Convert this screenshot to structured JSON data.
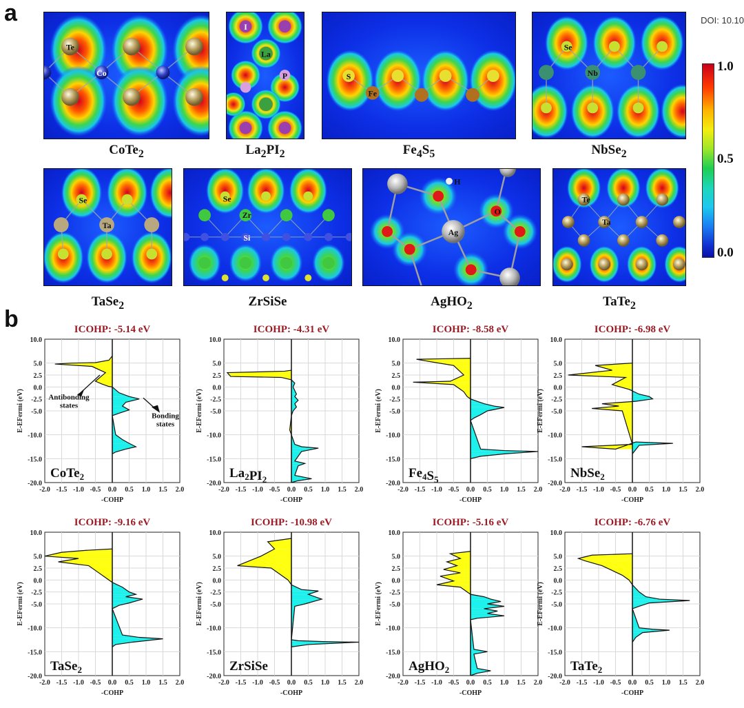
{
  "panel_a": {
    "letter": "a",
    "doi": "DOI: 10.10",
    "colorbar": {
      "ticks": [
        "1.0",
        "0.5",
        "0.0"
      ]
    },
    "maps": [
      {
        "id": "CoTe2",
        "label": "CoTe",
        "sub": "2",
        "atoms": [
          "Te",
          "Co"
        ]
      },
      {
        "id": "La2PI2",
        "label": "La",
        "sub": "2",
        "label2": "PI",
        "sub2": "2",
        "atoms": [
          "I",
          "La",
          "P"
        ]
      },
      {
        "id": "Fe4S5",
        "label": "Fe",
        "sub": "4",
        "label2": "S",
        "sub2": "5",
        "atoms": [
          "S",
          "Fe"
        ]
      },
      {
        "id": "NbSe2",
        "label": "NbSe",
        "sub": "2",
        "atoms": [
          "Se",
          "Nb"
        ]
      },
      {
        "id": "TaSe2",
        "label": "TaSe",
        "sub": "2",
        "atoms": [
          "Se",
          "Ta"
        ]
      },
      {
        "id": "ZrSiSe",
        "label": "ZrSiSe",
        "sub": "",
        "atoms": [
          "Se",
          "Zr",
          "Si"
        ]
      },
      {
        "id": "AgHO2",
        "label": "AgHO",
        "sub": "2",
        "atoms": [
          "H",
          "Ag",
          "O"
        ]
      },
      {
        "id": "TaTe2",
        "label": "TaTe",
        "sub": "2",
        "atoms": [
          "Te",
          "Ta"
        ]
      }
    ]
  },
  "panel_b": {
    "letter": "b",
    "annotations": {
      "antibonding": [
        "Antibonding",
        "states"
      ],
      "bonding": [
        "Bonding",
        "states"
      ]
    }
  },
  "chart_data": [
    {
      "type": "area",
      "title": "ICOHP: -5.14 eV",
      "name": "CoTe",
      "sub": "2",
      "xlabel": "-COHP",
      "ylabel": "E-EFermi (eV)",
      "xlim": [
        -2.0,
        2.0
      ],
      "ylim": [
        -20.0,
        10.0
      ],
      "xticks": [
        "-2.0",
        "-1.5",
        "-1.0",
        "-0.5",
        "0.0",
        "0.5",
        "1.0",
        "1.5",
        "2.0"
      ],
      "yticks": [
        "10.0",
        "5.0",
        "2.5",
        "0.0",
        "-2.5",
        "-5.0",
        "-10.0",
        "-15.0",
        "-20.0"
      ],
      "ytick_values": [
        10,
        5,
        2.5,
        0,
        -2.5,
        -5,
        -10,
        -15,
        -20
      ],
      "grid": true,
      "x": [
        0,
        -0.1,
        -0.5,
        -1.2,
        -1.7,
        -0.6,
        -0.2,
        -0.3,
        -0.5,
        -0.3,
        -0.1,
        0,
        0.2,
        0.5,
        0.8,
        0.4,
        0.3,
        0.5,
        0.2,
        0,
        0.1,
        0.3,
        0.5,
        0.7,
        0.4,
        0.1,
        0
      ],
      "y": [
        6.5,
        5.6,
        5.1,
        5.0,
        4.8,
        4.3,
        3.0,
        2.4,
        1.2,
        0.6,
        0.1,
        0,
        -1.2,
        -2.0,
        -2.5,
        -3.2,
        -4.0,
        -4.8,
        -5.5,
        -6.0,
        -10.0,
        -11.0,
        -11.8,
        -12.5,
        -13.0,
        -13.6,
        -14.0
      ]
    },
    {
      "type": "area",
      "title": "ICOHP: -4.31 eV",
      "name": "La",
      "sub": "2",
      "name2": "PI",
      "sub2": "2",
      "xlabel": "-COHP",
      "ylabel": "E-EFermi (eV)",
      "xlim": [
        -2.0,
        2.0
      ],
      "ylim": [
        -20.0,
        10.0
      ],
      "xticks": [
        "-2.0",
        "-1.5",
        "-1.0",
        "-0.5",
        "0.0",
        "0.5",
        "1.0",
        "1.5",
        "2.0"
      ],
      "yticks": [
        "10.0",
        "5.0",
        "2.5",
        "0.0",
        "-2.5",
        "-5.0",
        "-10.0",
        "-15.0",
        "-20.0"
      ],
      "ytick_values": [
        10,
        5,
        2.5,
        0,
        -2.5,
        -5,
        -10,
        -15,
        -20
      ],
      "grid": true,
      "x": [
        0,
        -0.2,
        -1.9,
        -1.8,
        -0.3,
        0,
        0.1,
        0.05,
        0.15,
        0.1,
        0.2,
        0.1,
        0.15,
        0.05,
        0,
        -0.05,
        0,
        0.1,
        0.3,
        0.8,
        0.3,
        0.1,
        0.4,
        0.2,
        0.1,
        0.6,
        0.2,
        0
      ],
      "y": [
        3.5,
        3.3,
        3.0,
        2.2,
        2.0,
        1.5,
        0.8,
        0,
        -1.5,
        -2.0,
        -2.8,
        -3.5,
        -4.2,
        -5.0,
        -6.0,
        -9.0,
        -10.0,
        -12.0,
        -12.5,
        -12.8,
        -13.5,
        -15.5,
        -16.0,
        -16.5,
        -18.5,
        -19.2,
        -19.6,
        -20.0
      ]
    },
    {
      "type": "area",
      "title": "ICOHP: -8.58 eV",
      "name": "Fe",
      "sub": "4",
      "name2": "S",
      "sub2": "5",
      "xlabel": "-COHP",
      "ylabel": "E-EFermi (eV)",
      "xlim": [
        -2.0,
        2.0
      ],
      "ylim": [
        -20.0,
        10.0
      ],
      "xticks": [
        "-2.0",
        "-1.5",
        "-1.0",
        "-0.5",
        "0.0",
        "0.5",
        "1.0",
        "1.5",
        "2.0"
      ],
      "yticks": [
        "10.0",
        "5.0",
        "2.5",
        "0.0",
        "-2.5",
        "-5.0",
        "-10.0",
        "-15.0",
        "-20.0"
      ],
      "ytick_values": [
        10,
        5,
        2.5,
        0,
        -2.5,
        -5,
        -10,
        -15,
        -20
      ],
      "grid": true,
      "x": [
        0,
        -1.6,
        -1.2,
        -0.5,
        -0.2,
        -0.6,
        -1.7,
        -0.5,
        -0.3,
        -0.2,
        -0.1,
        0,
        0.2,
        0.4,
        0.7,
        1.0,
        0.5,
        0.3,
        0.1,
        0,
        0.3,
        1.0,
        2.0,
        1.0,
        0.3,
        0
      ],
      "y": [
        6.0,
        5.8,
        5.3,
        4.5,
        2.5,
        1.2,
        1.0,
        0.5,
        -0.5,
        -1.0,
        -2.0,
        -2.5,
        -3.0,
        -3.5,
        -4.0,
        -4.3,
        -5.0,
        -5.8,
        -6.5,
        -7.0,
        -13.0,
        -13.3,
        -13.5,
        -14.0,
        -14.5,
        -15.0
      ]
    },
    {
      "type": "area",
      "title": "ICOHP: -6.98 eV",
      "name": "NbSe",
      "sub": "2",
      "xlabel": "-COHP",
      "ylabel": "E-EFermi (eV)",
      "xlim": [
        -2.0,
        2.0
      ],
      "ylim": [
        -20.0,
        10.0
      ],
      "xticks": [
        "-2.0",
        "-1.5",
        "-1.0",
        "-0.5",
        "0.0",
        "0.5",
        "1.0",
        "1.5",
        "2.0"
      ],
      "yticks": [
        "10.0",
        "5.0",
        "2.5",
        "0.0",
        "-2.5",
        "-5.0",
        "-10.0",
        "-15.0",
        "-20.0"
      ],
      "ytick_values": [
        10,
        5,
        2.5,
        0,
        -2.5,
        -5,
        -10,
        -15,
        -20
      ],
      "grid": true,
      "x": [
        0,
        -1.1,
        -0.6,
        -1.9,
        -0.2,
        -0.6,
        -0.1,
        0.2,
        0.5,
        0.6,
        0.1,
        -0.9,
        -0.4,
        -1.2,
        -0.3,
        0,
        -1.5,
        -0.5,
        0.1,
        1.2,
        0.2,
        0
      ],
      "y": [
        5.0,
        4.5,
        3.5,
        2.5,
        2.0,
        0.5,
        -0.5,
        -1.5,
        -2.0,
        -2.5,
        -3.0,
        -3.5,
        -4.0,
        -4.5,
        -5.0,
        -12.0,
        -12.5,
        -13.0,
        -11.5,
        -11.8,
        -12.2,
        -14.0
      ]
    },
    {
      "type": "area",
      "title": "ICOHP: -9.16 eV",
      "name": "TaSe",
      "sub": "2",
      "xlabel": "-COHP",
      "ylabel": "E-EFermi (eV)",
      "xlim": [
        -2.0,
        2.0
      ],
      "ylim": [
        -20.0,
        10.0
      ],
      "xticks": [
        "-2.0",
        "-1.5",
        "-1.0",
        "-0.5",
        "0.0",
        "0.5",
        "1.0",
        "1.5",
        "2.0"
      ],
      "yticks": [
        "10.0",
        "5.0",
        "2.5",
        "0.0",
        "-2.5",
        "-5.0",
        "-10.0",
        "-15.0",
        "-20.0"
      ],
      "ytick_values": [
        10,
        5,
        2.5,
        0,
        -2.5,
        -5,
        -10,
        -15,
        -20
      ],
      "grid": true,
      "x": [
        0,
        -0.8,
        -1.5,
        -2.0,
        -1.0,
        -1.6,
        -0.7,
        -0.4,
        -0.2,
        0,
        0.3,
        0.5,
        0.7,
        0.4,
        0.9,
        0.5,
        0.2,
        0,
        0.3,
        0.8,
        1.5,
        0.6,
        0.1,
        0
      ],
      "y": [
        6.5,
        6.2,
        5.8,
        5.0,
        4.5,
        3.8,
        3.0,
        1.5,
        0.5,
        -0.5,
        -1.5,
        -2.5,
        -3.0,
        -3.5,
        -4.0,
        -4.8,
        -5.3,
        -6.0,
        -11.5,
        -12.0,
        -12.3,
        -13.0,
        -13.5,
        -14.0
      ]
    },
    {
      "type": "area",
      "title": "ICOHP: -10.98 eV",
      "name": "ZrSiSe",
      "sub": "",
      "xlabel": "-COHP",
      "ylabel": "E-EFermi (eV)",
      "xlim": [
        -2.0,
        2.0
      ],
      "ylim": [
        -20.0,
        10.0
      ],
      "xticks": [
        "-2.0",
        "-1.5",
        "-1.0",
        "-0.5",
        "0.0",
        "0.5",
        "1.0",
        "1.5",
        "2.0"
      ],
      "yticks": [
        "10.0",
        "5.0",
        "2.5",
        "0.0",
        "-2.5",
        "-5.0",
        "-10.0",
        "-15.0",
        "-20.0"
      ],
      "ytick_values": [
        10,
        5,
        2.5,
        0,
        -2.5,
        -5,
        -10,
        -15,
        -20
      ],
      "grid": true,
      "x": [
        0,
        -0.2,
        -0.7,
        -0.5,
        -0.9,
        -1.6,
        -0.6,
        -0.3,
        -0.1,
        0,
        0.3,
        0.8,
        0.5,
        0.9,
        0.4,
        0.1,
        0,
        0.2,
        1.0,
        2.0,
        0.5,
        0
      ],
      "y": [
        8.7,
        8.5,
        8.0,
        6.5,
        5.0,
        3.0,
        2.5,
        1.0,
        0,
        -1.0,
        -2.0,
        -2.3,
        -3.0,
        -4.0,
        -5.0,
        -5.5,
        -12.5,
        -12.7,
        -12.9,
        -13.0,
        -13.5,
        -14.0
      ]
    },
    {
      "type": "area",
      "title": "ICOHP: -5.16 eV",
      "name": "AgHO",
      "sub": "2",
      "xlabel": "-COHP",
      "ylabel": "E-EFermi (eV)",
      "xlim": [
        -2.0,
        2.0
      ],
      "ylim": [
        -20.0,
        10.0
      ],
      "xticks": [
        "-2.0",
        "-1.5",
        "-1.0",
        "-0.5",
        "0.0",
        "0.5",
        "1.0",
        "1.5",
        "2.0"
      ],
      "yticks": [
        "10.0",
        "5.0",
        "2.5",
        "0.0",
        "-2.5",
        "-5.0",
        "-10.0",
        "-15.0",
        "-20.0"
      ],
      "ytick_values": [
        10,
        5,
        2.5,
        0,
        -2.5,
        -5,
        -10,
        -15,
        -20
      ],
      "grid": true,
      "x": [
        0,
        -0.6,
        -0.3,
        -0.7,
        -0.4,
        -0.8,
        -0.3,
        -0.9,
        -0.5,
        -1.0,
        -0.3,
        -0.1,
        0,
        0.4,
        0.6,
        0.9,
        0.5,
        1.0,
        0.4,
        0.8,
        0.5,
        1.0,
        0.2,
        0,
        0.1,
        0.5,
        0.1,
        0.2,
        0.6,
        0.2,
        0
      ],
      "y": [
        6.0,
        5.5,
        4.5,
        3.8,
        3.0,
        2.2,
        1.5,
        0.8,
        -0.2,
        -1.0,
        -1.5,
        -2.5,
        -3.0,
        -3.5,
        -4.0,
        -4.5,
        -5.0,
        -5.5,
        -6.0,
        -6.5,
        -7.0,
        -7.5,
        -8.0,
        -8.3,
        -14.5,
        -15.0,
        -15.5,
        -18.5,
        -19.0,
        -19.5,
        -20.0
      ]
    },
    {
      "type": "area",
      "title": "ICOHP: -6.76 eV",
      "name": "TaTe",
      "sub": "2",
      "xlabel": "-COHP",
      "ylabel": "E-EFermi (eV)",
      "xlim": [
        -2.0,
        2.0
      ],
      "ylim": [
        -20.0,
        10.0
      ],
      "xticks": [
        "-2.0",
        "-1.5",
        "-1.0",
        "-0.5",
        "0.0",
        "0.5",
        "1.0",
        "1.5",
        "2.0"
      ],
      "yticks": [
        "10.0",
        "5.0",
        "2.5",
        "0.0",
        "-2.5",
        "-5.0",
        "-10.0",
        "-15.0",
        "-20.0"
      ],
      "ytick_values": [
        10,
        5,
        2.5,
        0,
        -2.5,
        -5,
        -10,
        -15,
        -20
      ],
      "grid": true,
      "x": [
        0,
        -1.2,
        -1.6,
        -1.4,
        -0.9,
        -0.6,
        -0.3,
        -0.1,
        0,
        0.2,
        0.4,
        0.8,
        1.7,
        0.5,
        0.2,
        0,
        0.2,
        0.6,
        1.1,
        0.3,
        0.1,
        0
      ],
      "y": [
        5.5,
        5.2,
        4.5,
        4.0,
        3.0,
        2.0,
        1.0,
        0,
        -1.0,
        -2.5,
        -3.5,
        -4.0,
        -4.3,
        -4.8,
        -5.5,
        -6.0,
        -10.0,
        -10.3,
        -10.5,
        -11.0,
        -12.0,
        -13.0
      ]
    }
  ]
}
